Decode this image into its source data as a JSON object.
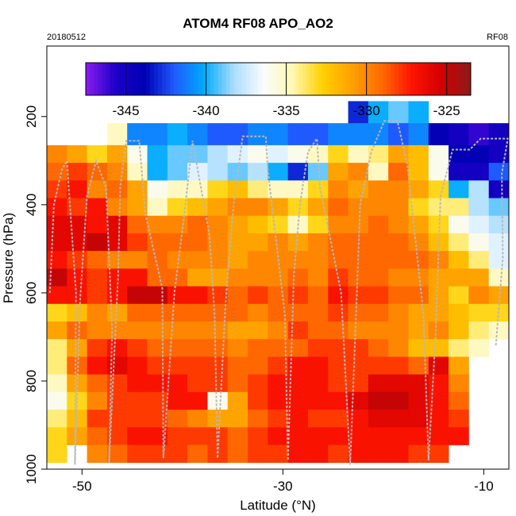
{
  "chart_data": {
    "type": "heatmap",
    "title": "ATOM4 RF08 APO_AO2",
    "date_label": "20180512",
    "flight_label": "RF08",
    "xlabel": "Latitude (°N)",
    "ylabel": "Pressure (hPa)",
    "xlim": [
      -53.5,
      -7.5
    ],
    "ylim": [
      1000,
      40
    ],
    "x_ticks": [
      -50,
      -30,
      -10
    ],
    "y_ticks": [
      200,
      400,
      600,
      800,
      1000
    ],
    "colorbar": {
      "range": [
        -347.5,
        -323.5
      ],
      "ticks": [
        -345,
        -340,
        -335,
        -330,
        -325
      ],
      "colors": [
        "#8a1cf0",
        "#1e00c8",
        "#0000b4",
        "#1f5cff",
        "#00aaff",
        "#aaddff",
        "#fafcff",
        "#fff8b0",
        "#ffd000",
        "#ffa000",
        "#ff6a00",
        "#ff1400",
        "#d20000",
        "#8c1a1a"
      ]
    },
    "field": {
      "lat_edges": [
        -53.5,
        -51.5,
        -49.5,
        -47.5,
        -45.5,
        -43.5,
        -41.5,
        -39.5,
        -37.5,
        -35.5,
        -33.5,
        -31.5,
        -29.5,
        -27.5,
        -25.5,
        -23.5,
        -21.5,
        -19.5,
        -17.5,
        -15.5,
        -13.5,
        -11.5,
        -9.5,
        -7.5
      ],
      "pressure_edges": [
        165,
        215,
        265,
        305,
        345,
        385,
        425,
        465,
        505,
        545,
        585,
        625,
        665,
        705,
        745,
        785,
        825,
        865,
        905,
        945,
        985
      ],
      "rows": [
        [
          null,
          null,
          null,
          null,
          null,
          null,
          null,
          null,
          null,
          null,
          null,
          null,
          null,
          null,
          null,
          -343,
          -340,
          -339,
          -340,
          null,
          null,
          null,
          null
        ],
        [
          null,
          null,
          null,
          -335,
          -341,
          -341,
          -340,
          -341,
          -342,
          -342,
          -341,
          -341,
          -342,
          -342,
          -341,
          -341,
          -341,
          -342,
          -341,
          -344,
          -345,
          -346,
          -345
        ],
        [
          -330,
          -331,
          -333,
          -331,
          -336,
          -340,
          -339,
          -339,
          -338,
          -337,
          -336,
          -337,
          -336,
          -335,
          -333,
          -335,
          -334,
          -331,
          -332,
          -336,
          -344,
          -344,
          -345
        ],
        [
          -329,
          -328,
          -329,
          -330,
          -335,
          -340,
          -339,
          -337,
          -338,
          -339,
          -338,
          -340,
          -343,
          -339,
          -331,
          -330,
          -335,
          -329,
          -332,
          -336,
          -345,
          -345,
          -342
        ],
        [
          -328,
          -327,
          -330,
          -329,
          -331,
          -336,
          -335,
          -335,
          -333,
          -332,
          -334,
          -335,
          -335,
          -333,
          -330,
          -331,
          -330,
          -330,
          -331,
          -333,
          -340,
          -338,
          -345
        ],
        [
          -327,
          -328,
          -327,
          -330,
          -331,
          -335,
          -333,
          -332,
          -331,
          -330,
          -330,
          -331,
          -333,
          -331,
          -329,
          -330,
          -330,
          -330,
          -333,
          -334,
          -334,
          -338,
          -339
        ],
        [
          -326,
          -326,
          -327,
          -326,
          -329,
          -330,
          -330,
          -329,
          -330,
          -331,
          -332,
          -333,
          -335,
          -333,
          -330,
          -330,
          -329,
          -330,
          -331,
          -333,
          -336,
          -337,
          -338
        ],
        [
          -326,
          -326,
          -325,
          -326,
          -328,
          -329,
          -329,
          -329,
          -330,
          -331,
          -331,
          -330,
          -331,
          -330,
          -329,
          -329,
          -329,
          -329,
          -330,
          -332,
          -334,
          -336,
          -337
        ],
        [
          -327,
          -328,
          -329,
          -330,
          -330,
          -329,
          -330,
          -330,
          -330,
          -331,
          -330,
          -330,
          -330,
          -330,
          -329,
          -329,
          -329,
          -329,
          -329,
          -330,
          -332,
          -334,
          -337
        ],
        [
          -325,
          -327,
          -328,
          -327,
          -327,
          -329,
          -329,
          -331,
          -331,
          -330,
          -330,
          -330,
          -329,
          -330,
          -328,
          -329,
          -329,
          -330,
          -330,
          -331,
          -331,
          -331,
          -335
        ],
        [
          -327,
          -327,
          -328,
          -327,
          -325,
          -325,
          -327,
          -327,
          -328,
          -329,
          -328,
          -329,
          -328,
          -329,
          -327,
          -328,
          -328,
          -329,
          -329,
          -331,
          -333,
          -330,
          -331
        ],
        [
          -333,
          -332,
          -330,
          -331,
          -329,
          -329,
          -329,
          -329,
          -329,
          -329,
          -330,
          -329,
          -329,
          -329,
          -328,
          -329,
          -329,
          -330,
          -331,
          -331,
          -332,
          -333,
          -333
        ],
        [
          -331,
          -329,
          -330,
          -330,
          -330,
          -330,
          -330,
          -330,
          -330,
          -331,
          -331,
          -330,
          -328,
          -329,
          -329,
          -330,
          -330,
          -330,
          -331,
          -330,
          -332,
          -334,
          -335
        ],
        [
          -334,
          -331,
          -328,
          -327,
          -328,
          -329,
          -329,
          -329,
          -329,
          -330,
          -329,
          -329,
          -329,
          -328,
          -328,
          -328,
          -329,
          -330,
          -332,
          -332,
          -334,
          -335,
          null
        ],
        [
          -334,
          -329,
          -327,
          -326,
          -327,
          -328,
          -328,
          -328,
          -328,
          -329,
          -329,
          -328,
          -327,
          -327,
          -328,
          -328,
          -328,
          -328,
          -329,
          -326,
          -331,
          null,
          null
        ],
        [
          -335,
          -331,
          -329,
          -328,
          -327,
          -327,
          -327,
          -328,
          -328,
          -329,
          -328,
          -327,
          -327,
          -327,
          -328,
          -328,
          -326,
          -326,
          -326,
          -327,
          -330,
          null,
          null
        ],
        [
          -336,
          -333,
          -330,
          -328,
          -328,
          -328,
          -327,
          -327,
          -336,
          -331,
          -328,
          -327,
          -327,
          -327,
          -327,
          -326,
          -325,
          -325,
          -326,
          -327,
          -329,
          null,
          null
        ],
        [
          -334,
          -332,
          -328,
          -328,
          -328,
          -328,
          -329,
          -330,
          -331,
          -331,
          -329,
          -328,
          -327,
          -328,
          -328,
          -327,
          -326,
          -326,
          -326,
          -327,
          -328,
          null,
          null
        ],
        [
          -333,
          -331,
          -329,
          -328,
          -327,
          -327,
          -328,
          -328,
          -328,
          -329,
          -328,
          -327,
          -327,
          -327,
          -327,
          -327,
          -327,
          -327,
          -327,
          -327,
          -327,
          null,
          null
        ],
        [
          -333,
          null,
          -330,
          -329,
          -328,
          -328,
          -328,
          -329,
          -328,
          -329,
          -328,
          -328,
          -327,
          -327,
          -328,
          -327,
          -327,
          -327,
          -328,
          -328,
          null,
          null,
          null
        ]
      ]
    },
    "flight_track": {
      "color": "#b8b8b8",
      "points": [
        [
          -53.2,
          600
        ],
        [
          -52.8,
          400
        ],
        [
          -52.0,
          320
        ],
        [
          -51.5,
          300
        ],
        [
          -50.6,
          600
        ],
        [
          -50.7,
          990
        ],
        [
          -50.2,
          620
        ],
        [
          -49.5,
          380
        ],
        [
          -48.6,
          300
        ],
        [
          -47.6,
          360
        ],
        [
          -47.0,
          680
        ],
        [
          -47.3,
          985
        ],
        [
          -46.4,
          560
        ],
        [
          -46.2,
          360
        ],
        [
          -45.6,
          255
        ],
        [
          -44.3,
          255
        ],
        [
          -43.7,
          420
        ],
        [
          -42.0,
          590
        ],
        [
          -41.9,
          975
        ],
        [
          -40.8,
          600
        ],
        [
          -39.8,
          420
        ],
        [
          -39.0,
          255
        ],
        [
          -37.3,
          470
        ],
        [
          -36.8,
          650
        ],
        [
          -36.5,
          975
        ],
        [
          -35.7,
          620
        ],
        [
          -34.9,
          400
        ],
        [
          -34.0,
          245
        ],
        [
          -31.7,
          245
        ],
        [
          -31.5,
          320
        ],
        [
          -29.8,
          650
        ],
        [
          -29.5,
          980
        ],
        [
          -28.9,
          560
        ],
        [
          -28.3,
          400
        ],
        [
          -27.5,
          280
        ],
        [
          -26.6,
          250
        ],
        [
          -26.3,
          360
        ],
        [
          -24.2,
          600
        ],
        [
          -23.3,
          990
        ],
        [
          -22.7,
          640
        ],
        [
          -22.3,
          400
        ],
        [
          -21.2,
          280
        ],
        [
          -19.9,
          210
        ],
        [
          -18.6,
          210
        ],
        [
          -17.6,
          310
        ],
        [
          -16.0,
          650
        ],
        [
          -15.5,
          980
        ],
        [
          -14.8,
          700
        ],
        [
          -14.3,
          380
        ],
        [
          -13.1,
          275
        ],
        [
          -11.4,
          275
        ],
        [
          -10.3,
          250
        ],
        [
          -7.6,
          250
        ],
        [
          -8.2,
          330
        ],
        [
          -8.1,
          520
        ],
        [
          -8.8,
          720
        ]
      ]
    }
  }
}
